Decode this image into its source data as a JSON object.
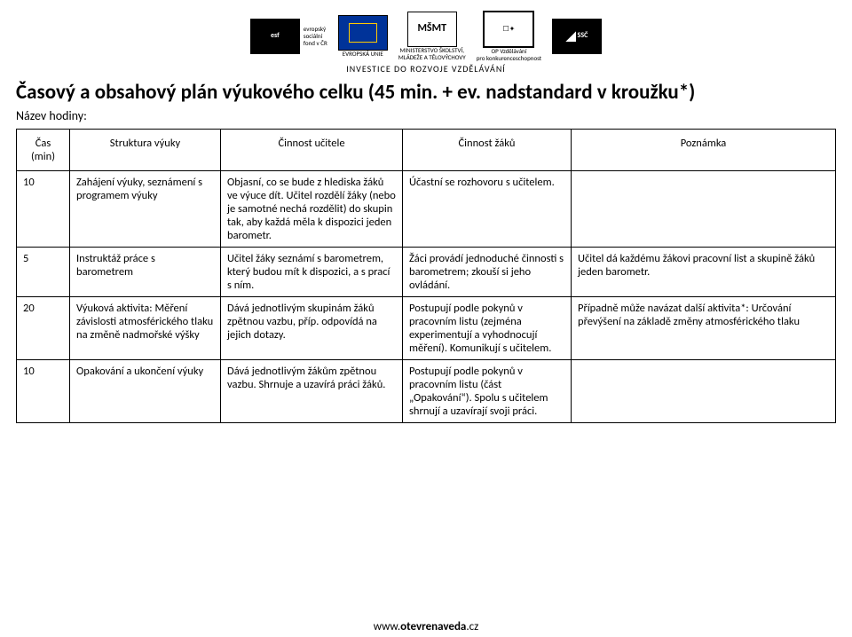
{
  "logos": {
    "tagline": "INVESTICE DO ROZVOJE VZDĚLÁVÁNÍ",
    "items": [
      {
        "name": "esf",
        "caption1": "evropský",
        "caption2": "sociální",
        "caption3": "fond v ČR"
      },
      {
        "name": "eu",
        "caption1": "EVROPSKÁ UNIE"
      },
      {
        "name": "msmt",
        "caption1": "MINISTERSTVO ŠKOLSTVÍ,",
        "caption2": "MLÁDEŽE A TĚLOVÝCHOVY"
      },
      {
        "name": "op",
        "caption1": "OP Vzdělávání",
        "caption2": "pro konkurenceschopnost"
      },
      {
        "name": "ssc",
        "caption1": "SSČ"
      }
    ]
  },
  "title": "Časový a obsahový plán výukového celku (45 min. + ev. nadstandard v kroužku*)",
  "subtitle": "Název hodiny:",
  "table": {
    "headers": [
      "Čas (min)",
      "Struktura výuky",
      "Činnost učitele",
      "Činnost žáků",
      "Poznámka"
    ],
    "rows": [
      {
        "time": "10",
        "structure": "Zahájení výuky, seznámení s programem výuky",
        "teacher": "Objasní, co se bude z hlediska žáků ve výuce dít. Učitel rozdělí žáky (nebo je samotné nechá rozdělit) do skupin tak, aby každá měla k dispozici jeden barometr.",
        "students": "Účastní se rozhovoru s učitelem.",
        "note": ""
      },
      {
        "time": "5",
        "structure": "Instruktáž práce s barometrem",
        "teacher": "Učitel žáky seznámí s barometrem, který budou mít k dispozici, a s prací s ním.",
        "students": "Žáci provádí jednoduché činnosti s barometrem; zkouší si jeho ovládání.",
        "note": "Učitel dá každému žákovi pracovní list a skupině žáků jeden barometr."
      },
      {
        "time": "20",
        "structure": "Výuková aktivita: Měření závislosti atmosférického tlaku na změně nadmořské výšky",
        "teacher": "Dává jednotlivým skupinám žáků zpětnou vazbu, příp. odpovídá na jejich dotazy.",
        "students": "Postupují podle pokynů v pracovním listu (zejména experimentují a vyhodnocují měření). Komunikují s učitelem.",
        "note": "Případně může navázat další aktivita*: Určování převýšení na základě změny atmosférického tlaku"
      },
      {
        "time": "10",
        "structure": "Opakování a ukončení výuky",
        "teacher": "Dává jednotlivým žákům zpětnou vazbu. Shrnuje a uzavírá práci žáků.",
        "students": "Postupují podle pokynů v pracovním listu (část „Opakování“). Spolu s učitelem shrnují a uzavírají svoji práci.",
        "note": ""
      }
    ]
  },
  "footer": {
    "pre": "www.",
    "bold": "otevrenaveda",
    "post": ".cz"
  }
}
